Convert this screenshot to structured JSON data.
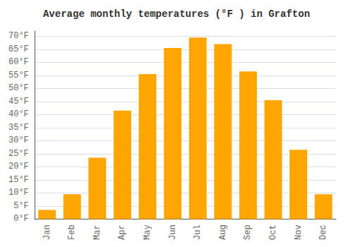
{
  "chart_data": {
    "type": "bar",
    "title": "Average monthly temperatures (°F ) in Grafton",
    "categories": [
      "Jan",
      "Feb",
      "Mar",
      "Apr",
      "May",
      "Jun",
      "Jul",
      "Aug",
      "Sep",
      "Oct",
      "Nov",
      "Dec"
    ],
    "values": [
      3.5,
      9.5,
      23.5,
      41.5,
      55.5,
      65.5,
      69.5,
      67.0,
      56.5,
      45.5,
      26.5,
      9.5
    ],
    "color": "#FFA500",
    "ylim": [
      0,
      72
    ],
    "yticks": [
      {
        "value": 0,
        "label": "0°F"
      },
      {
        "value": 5,
        "label": "5°F"
      },
      {
        "value": 10,
        "label": "10°F"
      },
      {
        "value": 15,
        "label": "15°F"
      },
      {
        "value": 20,
        "label": "20°F"
      },
      {
        "value": 25,
        "label": "25°F"
      },
      {
        "value": 30,
        "label": "30°F"
      },
      {
        "value": 35,
        "label": "35°F"
      },
      {
        "value": 40,
        "label": "40°F"
      },
      {
        "value": 45,
        "label": "45°F"
      },
      {
        "value": 50,
        "label": "50°F"
      },
      {
        "value": 55,
        "label": "55°F"
      },
      {
        "value": 60,
        "label": "60°F"
      },
      {
        "value": 65,
        "label": "65°F"
      },
      {
        "value": 70,
        "label": "70°F"
      }
    ],
    "grid": true
  }
}
